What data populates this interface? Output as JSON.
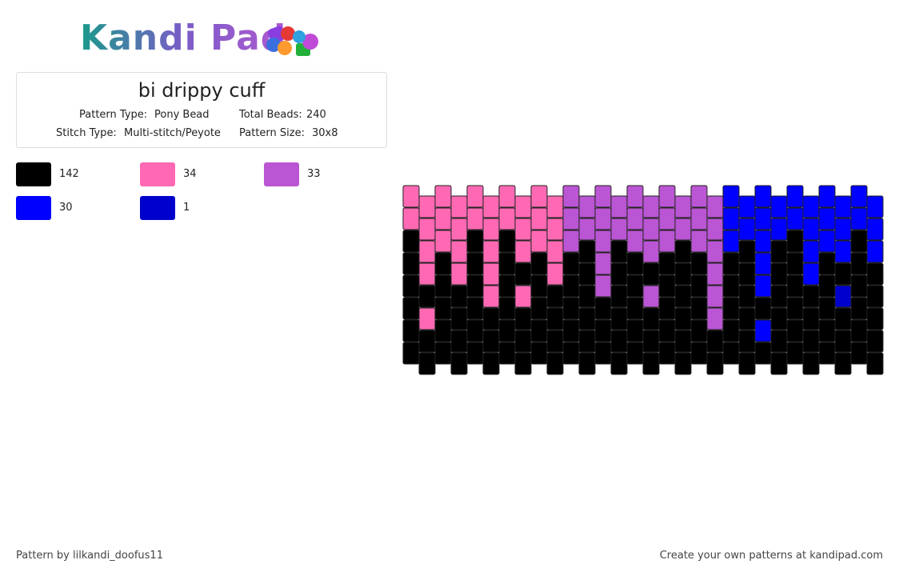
{
  "header": {
    "logo": "Kandi Pad"
  },
  "info": {
    "title": "bi drippy cuff",
    "pattern_type_label": "Pattern Type:",
    "pattern_type": "Pony Bead",
    "total_beads_label": "Total Beads:",
    "total_beads": 240,
    "stitch_type_label": "Stitch Type:",
    "stitch_type": "Multi-stitch/Peyote",
    "pattern_size_label": "Pattern Size:",
    "pattern_size": "30x8"
  },
  "legend": [
    {
      "color": "#000000",
      "count": 142
    },
    {
      "color": "#ff69b4",
      "count": 34
    },
    {
      "color": "#ba55d3",
      "count": 33
    },
    {
      "color": "#0000ff",
      "count": 30
    },
    {
      "color": "#0000cd",
      "count": 1
    }
  ],
  "footer": {
    "credit": "Pattern by lilkandi_doofus11",
    "promo": "Create your own patterns at kandipad.com"
  }
}
